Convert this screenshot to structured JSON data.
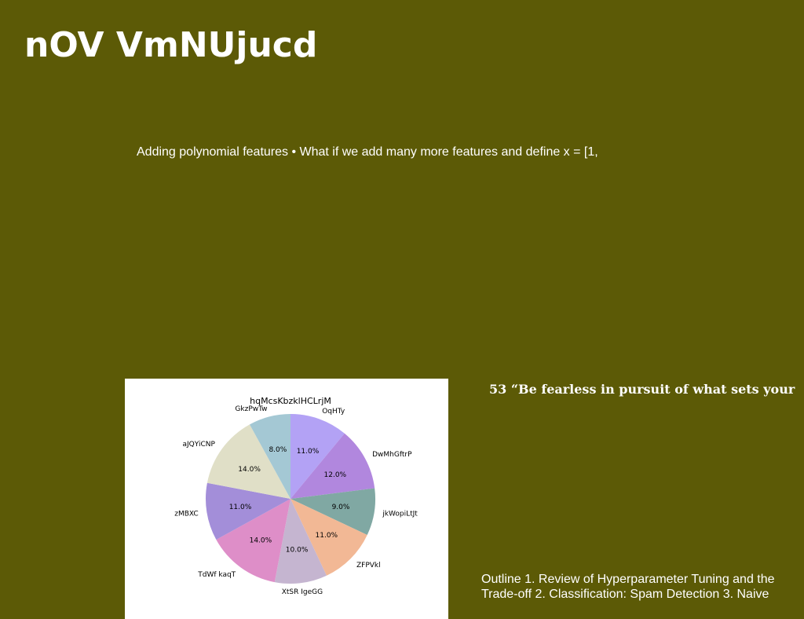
{
  "slide": {
    "title": "nOV VmNUjucd",
    "body_text": "Adding polynomial features • What if we add many more features and define x = [1,",
    "quote": "53 “Be fearless in pursuit of what sets your",
    "outline": "Outline 1. Review of Hyperparameter Tuning and the Trade-off 2. Classification: Spam Detection 3. Naive"
  },
  "colors": {
    "background": "#5c5a06",
    "text": "#ffffff"
  },
  "chart_data": {
    "type": "pie",
    "title": "hqMcsKbzklHCLrjM",
    "slices": [
      {
        "label": "OqHTy",
        "value": 11.0,
        "pct_label": "11.0%",
        "color": "#b3a2f5"
      },
      {
        "label": "DwMhGftrP",
        "value": 12.0,
        "pct_label": "12.0%",
        "color": "#b187de"
      },
      {
        "label": "jkWopiLtJt",
        "value": 9.0,
        "pct_label": "9.0%",
        "color": "#80a8a3"
      },
      {
        "label": "ZFPVkl",
        "value": 11.0,
        "pct_label": "11.0%",
        "color": "#f2b895"
      },
      {
        "label": "XtSR IgeGG",
        "value": 10.0,
        "pct_label": "10.0%",
        "color": "#c5b5d0"
      },
      {
        "label": "TdWf kaqT",
        "value": 14.0,
        "pct_label": "14.0%",
        "color": "#de8ec8"
      },
      {
        "label": "zMBXC",
        "value": 11.0,
        "pct_label": "11.0%",
        "color": "#a38ed9"
      },
      {
        "label": "aJQYiCNP",
        "value": 14.0,
        "pct_label": "14.0%",
        "color": "#e0dfc7"
      },
      {
        "label": "GkzPwTw",
        "value": 8.0,
        "pct_label": "8.0%",
        "color": "#a4c8d4"
      }
    ],
    "start_angle_deg": 90,
    "direction": "clockwise"
  }
}
